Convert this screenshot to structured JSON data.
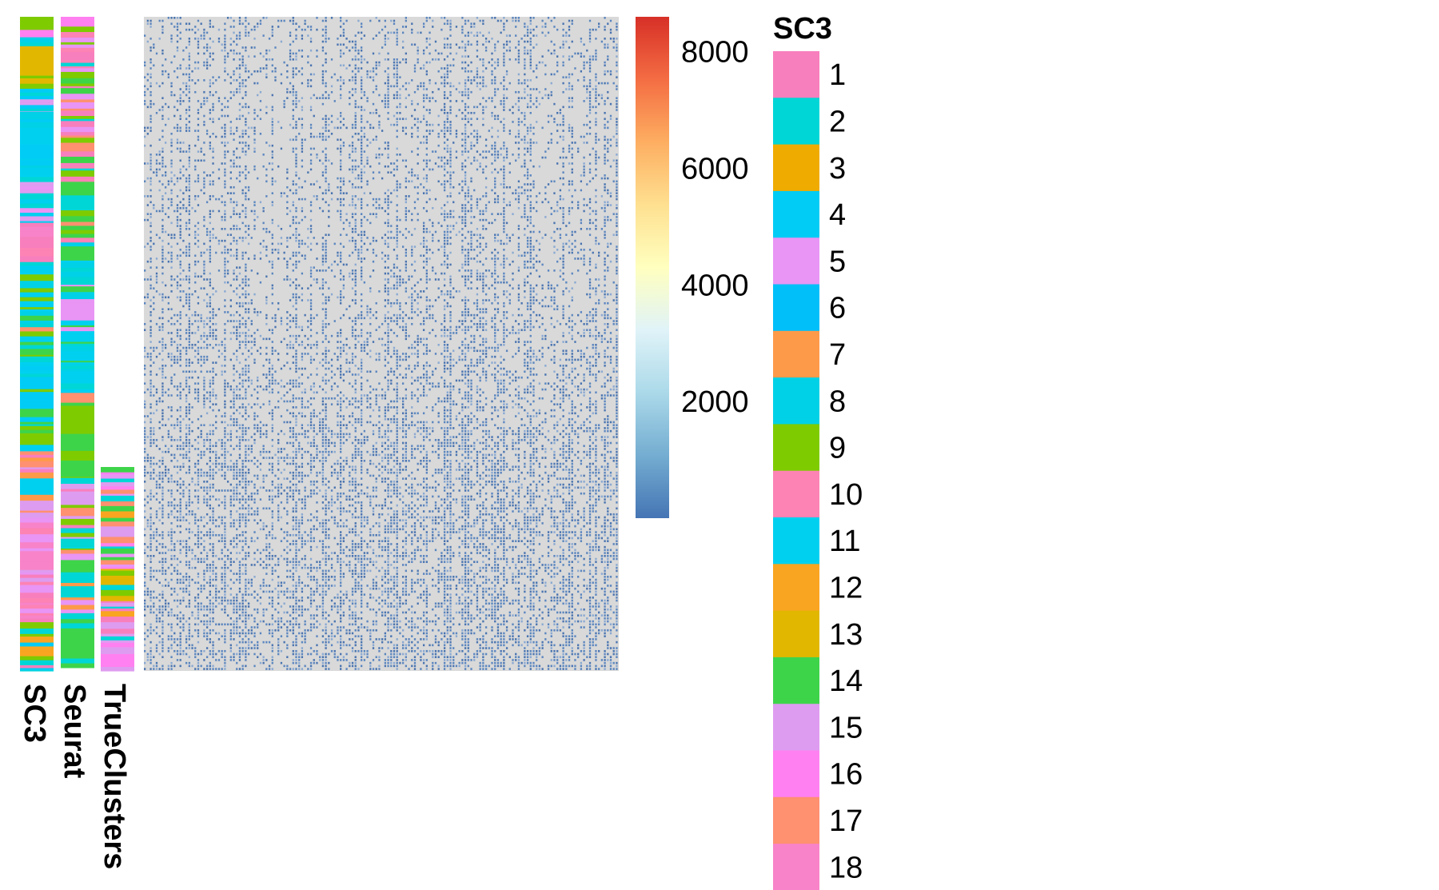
{
  "chart_data": {
    "type": "heatmap",
    "title": "",
    "colorbar": {
      "ticks": [
        8000,
        6000,
        4000,
        2000
      ],
      "range": [
        0,
        8600
      ],
      "colors": [
        "#4575b4",
        "#74add1",
        "#abd9e9",
        "#e0f3f8",
        "#ffffbf",
        "#fee090",
        "#fdae61",
        "#f46d43",
        "#d73027"
      ]
    },
    "heatmap": {
      "background_color": "#d9d9d9",
      "value_color": "#4a7ab8",
      "rows": 220,
      "columns": 160,
      "note_values": "sparse expression matrix; most cells low, scattered blue cells"
    },
    "annotation_tracks": [
      {
        "name": "SC3",
        "label": "SC3"
      },
      {
        "name": "Seurat",
        "label": "Seurat"
      },
      {
        "name": "TrueClusters",
        "label": "TrueClusters"
      }
    ],
    "legend": {
      "title": "SC3",
      "entries": [
        {
          "label": "1",
          "color": "#f87fbd"
        },
        {
          "label": "2",
          "color": "#00d6d6"
        },
        {
          "label": "3",
          "color": "#efab00"
        },
        {
          "label": "4",
          "color": "#00ccf5"
        },
        {
          "label": "5",
          "color": "#e895f5"
        },
        {
          "label": "6",
          "color": "#00bff9"
        },
        {
          "label": "7",
          "color": "#fd9a4a"
        },
        {
          "label": "8",
          "color": "#00d1e6"
        },
        {
          "label": "9",
          "color": "#7ecb00"
        },
        {
          "label": "10",
          "color": "#fc83b4"
        },
        {
          "label": "11",
          "color": "#00d0f0"
        },
        {
          "label": "12",
          "color": "#f9a521"
        },
        {
          "label": "13",
          "color": "#e2b700"
        },
        {
          "label": "14",
          "color": "#3ed44a"
        },
        {
          "label": "15",
          "color": "#de9cf0"
        },
        {
          "label": "16",
          "color": "#ff80f0"
        },
        {
          "label": "17",
          "color": "#ff9070"
        },
        {
          "label": "18",
          "color": "#f883c8"
        }
      ],
      "overflow_color": "#d9b300"
    }
  }
}
